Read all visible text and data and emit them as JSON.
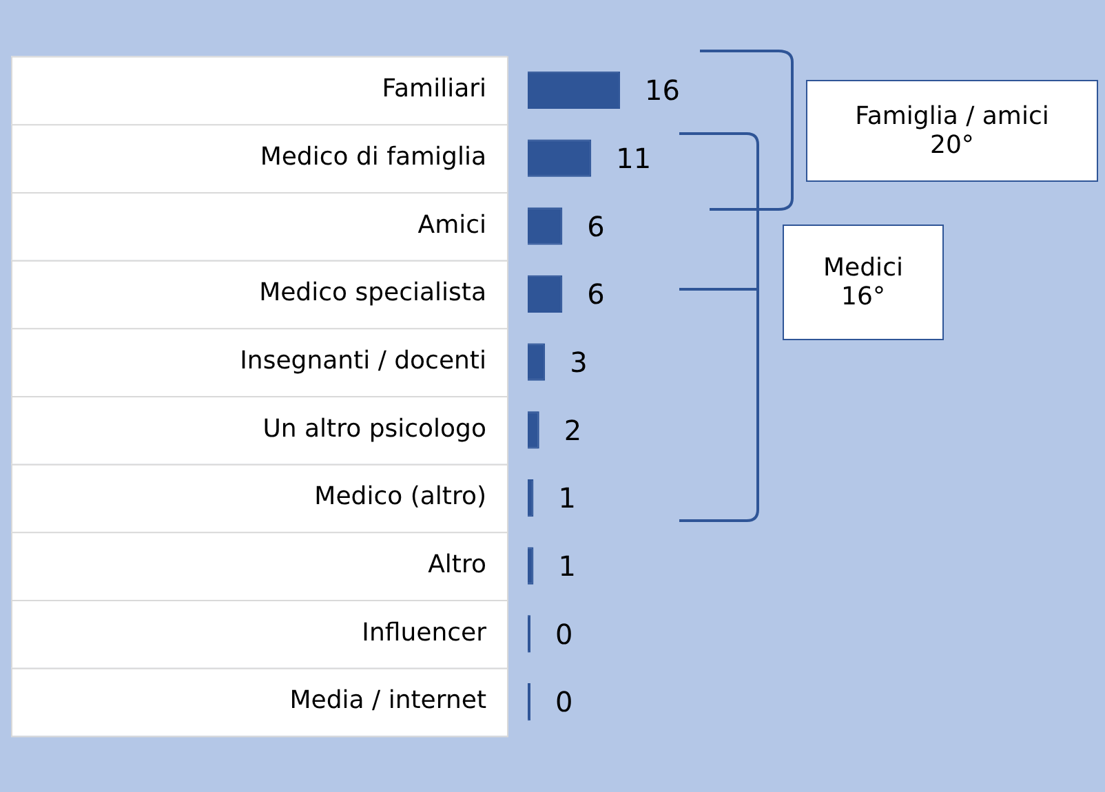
{
  "chart_data": {
    "type": "bar",
    "orientation": "horizontal",
    "categories": [
      "Familiari",
      "Medico di famiglia",
      "Amici",
      "Medico specialista",
      "Insegnanti / docenti",
      "Un altro psicologo",
      "Medico (altro)",
      "Altro",
      "Influencer",
      "Media / internet"
    ],
    "values": [
      16,
      11,
      6,
      6,
      3,
      2,
      1,
      1,
      0,
      0
    ],
    "color": "#2f5597",
    "data_labels": true,
    "grid": false,
    "annotations": [
      "Famiglia / amici\n20°",
      "Medici\n16°"
    ]
  }
}
